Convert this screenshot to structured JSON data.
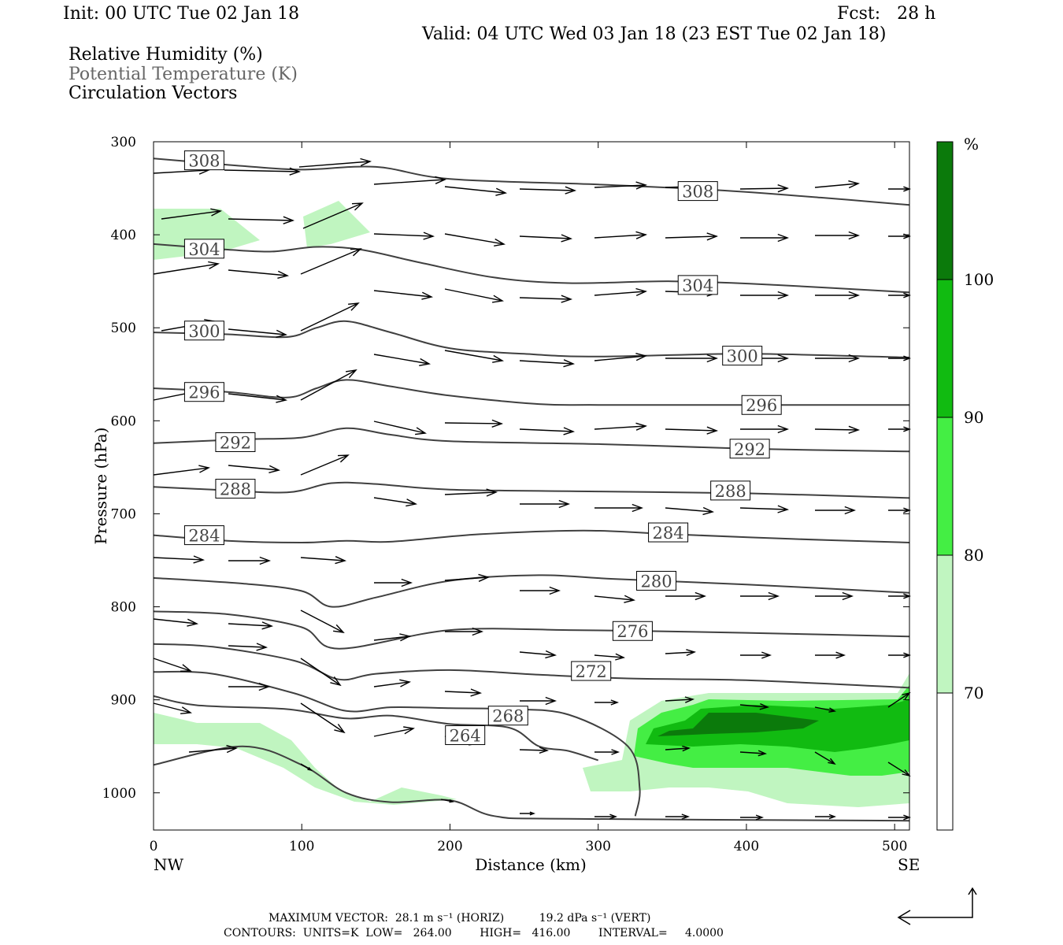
{
  "header": {
    "init": "Init: 00 UTC Tue 02 Jan 18",
    "fcst": "Fcst:   28 h",
    "valid": "Valid: 04 UTC Wed 03 Jan 18 (23 EST Tue 02 Jan 18)",
    "field1": "Relative Humidity (%)",
    "field2": "Potential Temperature (K)",
    "field3": "Circulation Vectors"
  },
  "footer": {
    "max_vector": "MAXIMUM VECTOR:  28.1 m s⁻¹ (HORIZ)          19.2 dPa s⁻¹ (VERT)",
    "contours": "CONTOURS:  UNITS=K  LOW=   264.00        HIGH=   416.00        INTERVAL=     4.0000"
  },
  "colors": {
    "rh70": "#c0f5c0",
    "rh80": "#44ee44",
    "rh90": "#11bb11",
    "rh100": "#0b7a0b",
    "contour": "#404040"
  },
  "chart_data": {
    "type": "contour",
    "xlabel": "Distance (km)",
    "ylabel": "Pressure (hPa)",
    "x_ticks": [
      "0",
      "100",
      "200",
      "300",
      "400",
      "500"
    ],
    "x_end_labels": [
      "NW",
      "SE"
    ],
    "y_ticks": [
      "300",
      "400",
      "500",
      "600",
      "700",
      "800",
      "900",
      "1000"
    ],
    "xlim": [
      0,
      510
    ],
    "ylim": [
      1040,
      300
    ],
    "colorbar": {
      "unit": "%",
      "levels": [
        "70",
        "80",
        "90",
        "100"
      ]
    },
    "theta_contours": [
      {
        "label": "308",
        "points": [
          [
            0,
            318
          ],
          [
            30,
            322
          ],
          [
            60,
            326
          ],
          [
            100,
            330
          ],
          [
            150,
            327
          ],
          [
            200,
            340
          ],
          [
            300,
            346
          ],
          [
            380,
            352
          ],
          [
            450,
            360
          ],
          [
            510,
            368
          ]
        ],
        "labels": [
          [
            22,
            320
          ],
          [
            355,
            353
          ]
        ]
      },
      {
        "label": "304",
        "points": [
          [
            0,
            410
          ],
          [
            50,
            416
          ],
          [
            80,
            418
          ],
          [
            110,
            413
          ],
          [
            140,
            416
          ],
          [
            180,
            430
          ],
          [
            230,
            446
          ],
          [
            280,
            452
          ],
          [
            350,
            450
          ],
          [
            420,
            454
          ],
          [
            510,
            462
          ]
        ],
        "labels": [
          [
            22,
            415
          ],
          [
            355,
            454
          ]
        ]
      },
      {
        "label": "300",
        "points": [
          [
            0,
            505
          ],
          [
            50,
            507
          ],
          [
            90,
            510
          ],
          [
            110,
            500
          ],
          [
            130,
            493
          ],
          [
            160,
            505
          ],
          [
            200,
            522
          ],
          [
            250,
            528
          ],
          [
            300,
            531
          ],
          [
            400,
            528
          ],
          [
            510,
            532
          ]
        ],
        "labels": [
          [
            22,
            503
          ],
          [
            385,
            530
          ]
        ]
      },
      {
        "label": "296",
        "points": [
          [
            0,
            565
          ],
          [
            50,
            569
          ],
          [
            90,
            575
          ],
          [
            110,
            565
          ],
          [
            130,
            556
          ],
          [
            160,
            563
          ],
          [
            200,
            573
          ],
          [
            260,
            582
          ],
          [
            300,
            583
          ],
          [
            400,
            583
          ],
          [
            510,
            583
          ]
        ],
        "labels": [
          [
            22,
            569
          ],
          [
            398,
            583
          ]
        ]
      },
      {
        "label": "292",
        "points": [
          [
            0,
            624
          ],
          [
            60,
            620
          ],
          [
            100,
            618
          ],
          [
            130,
            608
          ],
          [
            160,
            615
          ],
          [
            200,
            622
          ],
          [
            300,
            625
          ],
          [
            400,
            630
          ],
          [
            510,
            633
          ]
        ],
        "labels": [
          [
            43,
            623
          ],
          [
            390,
            630
          ]
        ]
      },
      {
        "label": "288",
        "points": [
          [
            0,
            671
          ],
          [
            40,
            674
          ],
          [
            90,
            677
          ],
          [
            120,
            667
          ],
          [
            150,
            668
          ],
          [
            200,
            674
          ],
          [
            300,
            676
          ],
          [
            400,
            678
          ],
          [
            510,
            683
          ]
        ],
        "labels": [
          [
            43,
            673
          ],
          [
            377,
            675
          ]
        ]
      },
      {
        "label": "284",
        "points": [
          [
            0,
            723
          ],
          [
            50,
            729
          ],
          [
            100,
            731
          ],
          [
            130,
            729
          ],
          [
            160,
            730
          ],
          [
            220,
            722
          ],
          [
            290,
            718
          ],
          [
            350,
            722
          ],
          [
            430,
            727
          ],
          [
            510,
            731
          ]
        ],
        "labels": [
          [
            22,
            723
          ],
          [
            335,
            720
          ]
        ]
      },
      {
        "label": "280",
        "points": [
          [
            0,
            769
          ],
          [
            60,
            775
          ],
          [
            100,
            783
          ],
          [
            120,
            800
          ],
          [
            150,
            790
          ],
          [
            200,
            772
          ],
          [
            260,
            766
          ],
          [
            310,
            770
          ],
          [
            400,
            776
          ],
          [
            510,
            785
          ]
        ],
        "labels": [
          [
            327,
            772
          ]
        ]
      },
      {
        "label": "276",
        "points": [
          [
            0,
            805
          ],
          [
            50,
            808
          ],
          [
            100,
            822
          ],
          [
            125,
            845
          ],
          [
            200,
            825
          ],
          [
            280,
            825
          ],
          [
            330,
            826
          ],
          [
            400,
            828
          ],
          [
            510,
            832
          ]
        ],
        "labels": [
          [
            311,
            826
          ]
        ]
      },
      {
        "label": "272",
        "points": [
          [
            0,
            840
          ],
          [
            40,
            843
          ],
          [
            95,
            858
          ],
          [
            125,
            878
          ],
          [
            150,
            872
          ],
          [
            200,
            868
          ],
          [
            260,
            873
          ],
          [
            320,
            877
          ],
          [
            400,
            879
          ],
          [
            510,
            887
          ]
        ],
        "labels": [
          [
            283,
            869
          ]
        ]
      },
      {
        "label": "268",
        "points": [
          [
            0,
            870
          ],
          [
            40,
            872
          ],
          [
            95,
            893
          ],
          [
            130,
            912
          ],
          [
            160,
            908
          ],
          [
            200,
            909
          ],
          [
            240,
            910
          ],
          [
            280,
            916
          ],
          [
            320,
            950
          ],
          [
            328,
            995
          ],
          [
            325,
            1025
          ]
        ],
        "labels": [
          [
            227,
            917
          ]
        ]
      },
      {
        "label": "264",
        "points": [
          [
            0,
            896
          ],
          [
            30,
            906
          ],
          [
            90,
            910
          ],
          [
            130,
            920
          ],
          [
            160,
            917
          ],
          [
            200,
            926
          ],
          [
            240,
            930
          ],
          [
            260,
            950
          ],
          [
            280,
            955
          ],
          [
            300,
            965
          ]
        ],
        "labels": [
          [
            198,
            938
          ]
        ]
      },
      {
        "label": "",
        "points": [
          [
            0,
            970
          ],
          [
            60,
            950
          ],
          [
            100,
            970
          ],
          [
            130,
            1000
          ],
          [
            160,
            1010
          ],
          [
            200,
            1008
          ],
          [
            230,
            1025
          ],
          [
            280,
            1028
          ],
          [
            510,
            1030
          ]
        ],
        "labels": []
      }
    ]
  }
}
